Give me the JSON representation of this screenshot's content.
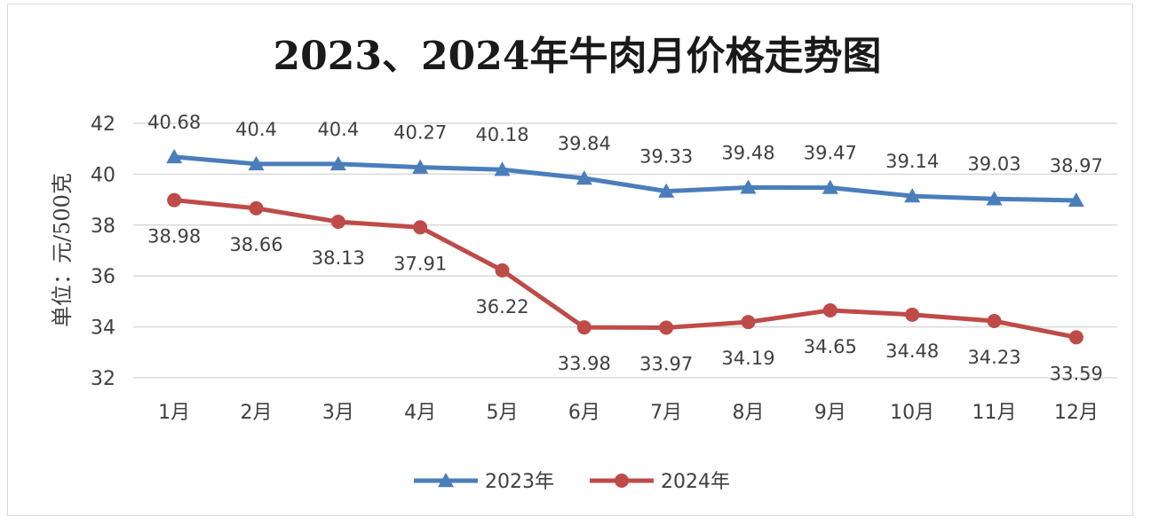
{
  "chart_data": {
    "type": "line",
    "title": "2023、2024年牛肉月价格走势图",
    "ylabel": "单位：元/500克",
    "xlabel": "",
    "ylim": [
      32,
      42
    ],
    "yticks": [
      32,
      34,
      36,
      38,
      40,
      42
    ],
    "categories": [
      "1月",
      "2月",
      "3月",
      "4月",
      "5月",
      "6月",
      "7月",
      "8月",
      "9月",
      "10月",
      "11月",
      "12月"
    ],
    "grid": "horizontal",
    "legend_position": "bottom",
    "series": [
      {
        "name": "2023年",
        "color": "#4a7ebb",
        "marker": "triangle",
        "values": [
          40.68,
          40.4,
          40.4,
          40.27,
          40.18,
          39.84,
          39.33,
          39.48,
          39.47,
          39.14,
          39.03,
          38.97
        ],
        "labels": [
          "40.68",
          "40.4",
          "40.4",
          "40.27",
          "40.18",
          "39.84",
          "39.33",
          "39.48",
          "39.47",
          "39.14",
          "39.03",
          "38.97"
        ]
      },
      {
        "name": "2024年",
        "color": "#be4b48",
        "marker": "circle",
        "values": [
          38.98,
          38.66,
          38.13,
          37.91,
          36.22,
          33.98,
          33.97,
          34.19,
          34.65,
          34.48,
          34.23,
          33.59
        ],
        "labels": [
          "38.98",
          "38.66",
          "38.13",
          "37.91",
          "36.22",
          "33.98",
          "33.97",
          "34.19",
          "34.65",
          "34.48",
          "34.23",
          "33.59"
        ]
      }
    ]
  }
}
